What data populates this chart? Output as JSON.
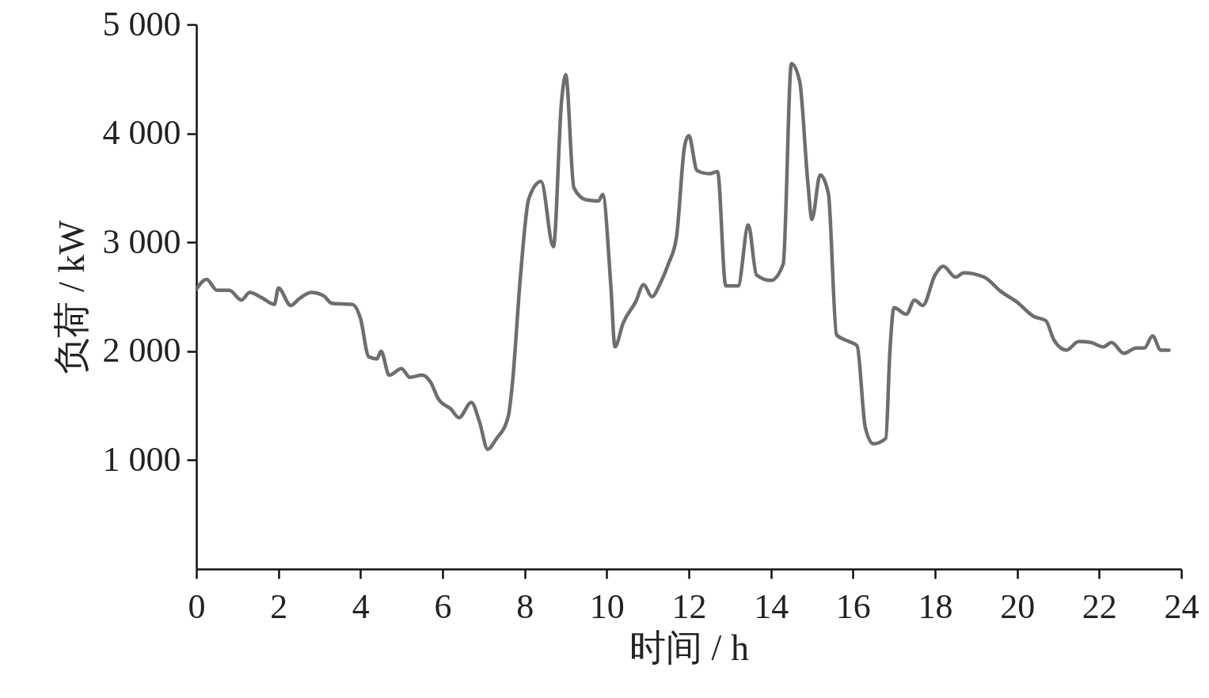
{
  "chart_data": {
    "type": "line",
    "xlabel": "时间 / h",
    "ylabel": "负荷 / kW",
    "xlim": [
      0,
      24
    ],
    "xticks": [
      0,
      2,
      4,
      6,
      8,
      10,
      12,
      14,
      16,
      18,
      20,
      22,
      24
    ],
    "ylim": [
      0,
      5000
    ],
    "yticks": [
      {
        "value": 1000,
        "label": "1 000"
      },
      {
        "value": 2000,
        "label": "2 000"
      },
      {
        "value": 3000,
        "label": "3 000"
      },
      {
        "value": 4000,
        "label": "4 000"
      },
      {
        "value": 5000,
        "label": "5 000"
      }
    ],
    "series": [
      {
        "color": "#6e6e6e",
        "x": [
          0.0,
          0.25,
          0.5,
          0.8,
          1.1,
          1.3,
          1.6,
          1.9,
          2.0,
          2.3,
          2.5,
          2.8,
          3.1,
          3.3,
          3.8,
          4.0,
          4.2,
          4.4,
          4.5,
          4.7,
          5.0,
          5.2,
          5.5,
          5.7,
          5.9,
          6.2,
          6.4,
          6.7,
          6.9,
          7.1,
          7.3,
          7.6,
          7.7,
          7.9,
          8.1,
          8.4,
          8.7,
          8.9,
          9.0,
          9.2,
          9.5,
          9.8,
          9.9,
          10.1,
          10.2,
          10.4,
          10.7,
          10.9,
          11.1,
          11.3,
          11.5,
          11.7,
          11.9,
          12.0,
          12.2,
          12.5,
          12.7,
          12.9,
          13.2,
          13.45,
          13.65,
          14.0,
          14.3,
          14.5,
          14.7,
          14.9,
          15.0,
          15.2,
          15.4,
          15.6,
          15.9,
          16.1,
          16.3,
          16.5,
          16.8,
          16.9,
          17.0,
          17.3,
          17.5,
          17.7,
          18.0,
          18.2,
          18.5,
          18.7,
          19.2,
          19.6,
          20.0,
          20.4,
          20.7,
          20.9,
          21.2,
          21.5,
          21.8,
          22.1,
          22.3,
          22.6,
          22.9,
          23.1,
          23.3,
          23.5,
          23.7
        ],
        "values": [
          2570,
          2660,
          2560,
          2560,
          2470,
          2540,
          2490,
          2430,
          2580,
          2420,
          2480,
          2540,
          2510,
          2440,
          2430,
          2300,
          1950,
          1930,
          2000,
          1780,
          1840,
          1760,
          1780,
          1720,
          1560,
          1470,
          1390,
          1530,
          1350,
          1100,
          1190,
          1400,
          1700,
          2700,
          3400,
          3560,
          2960,
          4300,
          4540,
          3500,
          3390,
          3380,
          3440,
          2600,
          2040,
          2260,
          2450,
          2610,
          2500,
          2620,
          2800,
          3050,
          3890,
          3980,
          3660,
          3630,
          3650,
          2600,
          2600,
          3160,
          2700,
          2650,
          2800,
          4640,
          4480,
          3550,
          3210,
          3620,
          3450,
          2150,
          2090,
          2050,
          1300,
          1150,
          1200,
          2000,
          2400,
          2340,
          2470,
          2420,
          2700,
          2780,
          2680,
          2720,
          2680,
          2550,
          2450,
          2320,
          2280,
          2100,
          2010,
          2090,
          2080,
          2040,
          2080,
          1980,
          2030,
          2030,
          2140,
          2010,
          2010
        ]
      }
    ]
  }
}
